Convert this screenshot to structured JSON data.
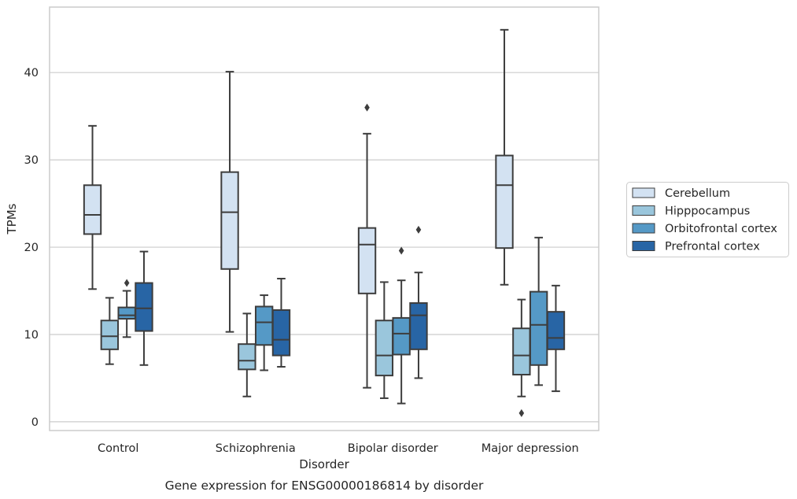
{
  "chart_data": {
    "type": "boxplot",
    "xlabel": "Disorder",
    "ylabel": "TPMs",
    "caption": "Gene expression for ENSG00000186814 by disorder",
    "ylim": [
      -1,
      47.5
    ],
    "yticks": [
      0,
      10,
      20,
      30,
      40
    ],
    "grid": "horizontal",
    "legend_position": "right",
    "categories": [
      "Control",
      "Schizophrenia",
      "Bipolar disorder",
      "Major depression"
    ],
    "series": [
      {
        "name": "Cerebellum",
        "color": "#d3e2f2",
        "boxes": [
          {
            "whisker_low": 15.2,
            "q1": 21.5,
            "median": 23.7,
            "q3": 27.1,
            "whisker_high": 33.9,
            "outliers": []
          },
          {
            "whisker_low": 10.3,
            "q1": 17.5,
            "median": 24.0,
            "q3": 28.6,
            "whisker_high": 40.1,
            "outliers": []
          },
          {
            "whisker_low": 3.9,
            "q1": 14.7,
            "median": 20.3,
            "q3": 22.2,
            "whisker_high": 33.0,
            "outliers": [
              36.0
            ]
          },
          {
            "whisker_low": 15.7,
            "q1": 19.9,
            "median": 27.1,
            "q3": 30.5,
            "whisker_high": 44.9,
            "outliers": []
          }
        ]
      },
      {
        "name": "Hipppocampus",
        "color": "#9ac6dc",
        "boxes": [
          {
            "whisker_low": 6.6,
            "q1": 8.3,
            "median": 9.8,
            "q3": 11.6,
            "whisker_high": 14.2,
            "outliers": []
          },
          {
            "whisker_low": 2.9,
            "q1": 6.0,
            "median": 7.0,
            "q3": 8.9,
            "whisker_high": 12.4,
            "outliers": []
          },
          {
            "whisker_low": 2.7,
            "q1": 5.3,
            "median": 7.6,
            "q3": 11.6,
            "whisker_high": 16.0,
            "outliers": []
          },
          {
            "whisker_low": 2.9,
            "q1": 5.4,
            "median": 7.6,
            "q3": 10.7,
            "whisker_high": 14.0,
            "outliers": [
              1.0
            ]
          }
        ]
      },
      {
        "name": "Orbitofrontal cortex",
        "color": "#5599c6",
        "boxes": [
          {
            "whisker_low": 9.7,
            "q1": 11.8,
            "median": 12.2,
            "q3": 13.1,
            "whisker_high": 15.0,
            "outliers": [
              15.9
            ]
          },
          {
            "whisker_low": 5.9,
            "q1": 8.8,
            "median": 11.4,
            "q3": 13.2,
            "whisker_high": 14.5,
            "outliers": []
          },
          {
            "whisker_low": 2.1,
            "q1": 7.7,
            "median": 10.1,
            "q3": 11.9,
            "whisker_high": 16.2,
            "outliers": [
              19.6
            ]
          },
          {
            "whisker_low": 4.2,
            "q1": 6.5,
            "median": 11.1,
            "q3": 14.9,
            "whisker_high": 21.1,
            "outliers": []
          }
        ]
      },
      {
        "name": "Prefrontal cortex",
        "color": "#2865a5",
        "boxes": [
          {
            "whisker_low": 6.5,
            "q1": 10.4,
            "median": 13.0,
            "q3": 15.9,
            "whisker_high": 19.5,
            "outliers": []
          },
          {
            "whisker_low": 6.3,
            "q1": 7.6,
            "median": 9.4,
            "q3": 12.8,
            "whisker_high": 16.4,
            "outliers": []
          },
          {
            "whisker_low": 5.0,
            "q1": 8.3,
            "median": 12.2,
            "q3": 13.6,
            "whisker_high": 17.1,
            "outliers": [
              22.0
            ]
          },
          {
            "whisker_low": 3.5,
            "q1": 8.3,
            "median": 9.6,
            "q3": 12.6,
            "whisker_high": 15.6,
            "outliers": []
          }
        ]
      }
    ]
  }
}
